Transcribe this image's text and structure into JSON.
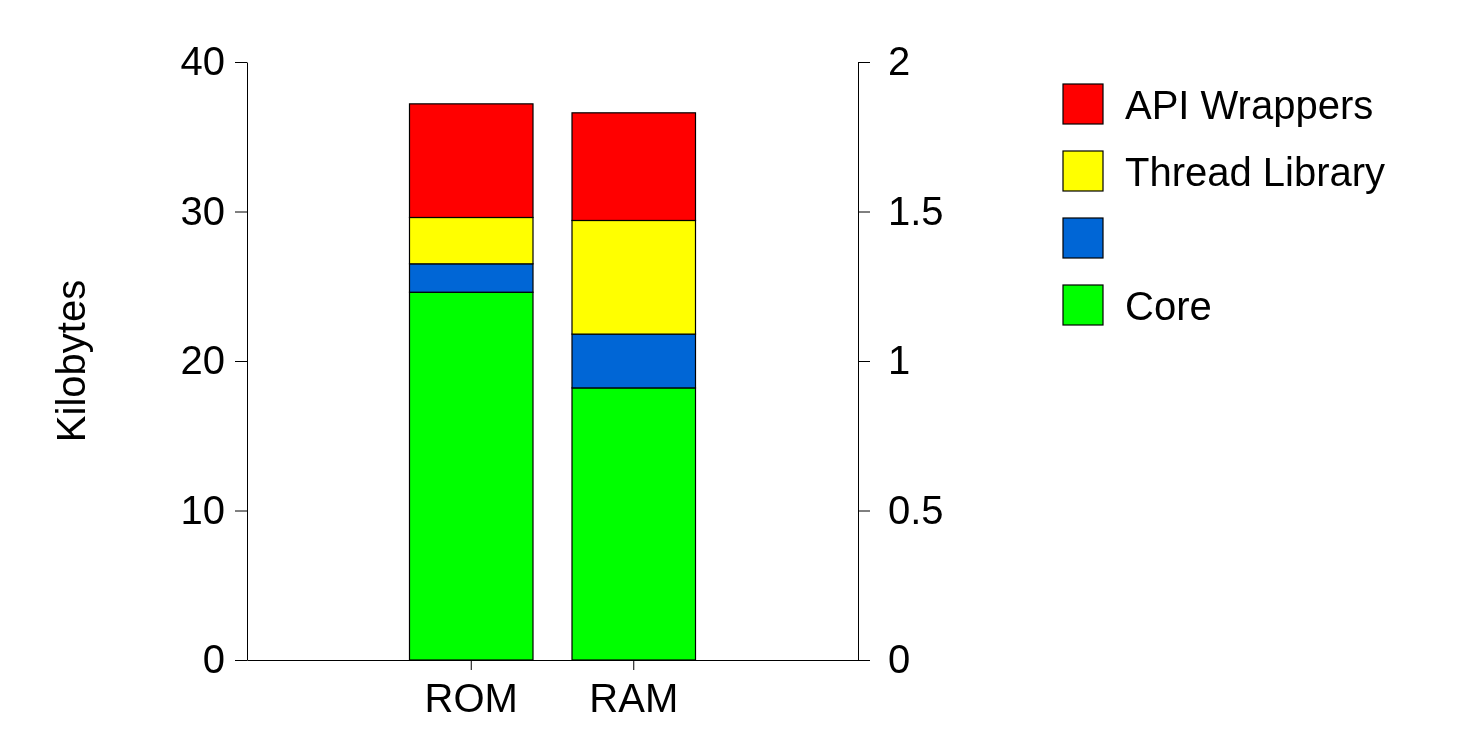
{
  "chart_data": {
    "type": "bar",
    "stacked": true,
    "ylabel": "Kilobytes",
    "categories": [
      "ROM",
      "RAM"
    ],
    "ylim": [
      0,
      40
    ],
    "yticks": [
      0,
      10,
      20,
      30,
      40
    ],
    "y2lim": [
      0,
      2
    ],
    "y2ticks": [
      0,
      {
        "value": 0.5,
        "label": "0.5"
      },
      1,
      {
        "value": 1.5,
        "label": "1.5"
      },
      2
    ],
    "legend": "top right",
    "series": [
      {
        "name": "Core",
        "color": "#00ff00",
        "values": [
          24.6,
          null
        ]
      },
      {
        "color": "#0066d6",
        "values": [
          1.9,
          null
        ]
      },
      {
        "name": "Thread Library",
        "color": "#ffff00",
        "values": [
          3.1,
          null
        ]
      },
      {
        "name": "API Wrappers",
        "color": "#ff0000",
        "values": [
          7.6,
          null
        ]
      },
      {
        "axis": "y2",
        "color": "#00ff00",
        "values": [
          null,
          0.91
        ]
      },
      {
        "axis": "y2",
        "color": "#0066d6",
        "values": [
          null,
          0.18
        ]
      },
      {
        "axis": "y2",
        "color": "#ffff00",
        "values": [
          null,
          0.38
        ]
      },
      {
        "axis": "y2",
        "color": "#ff0000",
        "values": [
          null,
          0.36
        ]
      }
    ]
  }
}
